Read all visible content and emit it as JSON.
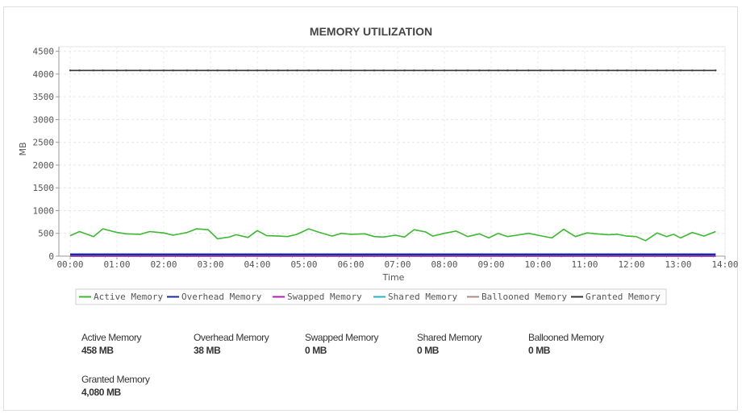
{
  "chart_data": {
    "type": "line",
    "title": "MEMORY UTILIZATION",
    "xlabel": "Time",
    "ylabel": "MB",
    "ylim": [
      0,
      4600
    ],
    "yticks": [
      0,
      500,
      1000,
      1500,
      2000,
      2500,
      3000,
      3500,
      4000,
      4500
    ],
    "xticks": [
      "00:00",
      "01:00",
      "02:00",
      "03:00",
      "04:00",
      "05:00",
      "06:00",
      "07:00",
      "08:00",
      "09:00",
      "10:00",
      "11:00",
      "12:00",
      "13:00",
      "14:00"
    ],
    "xlim_hours": [
      0,
      14
    ],
    "grid": true,
    "legend_position": "bottom",
    "x_hours": [
      0.0,
      0.2,
      0.5,
      0.7,
      1.0,
      1.2,
      1.5,
      1.7,
      2.0,
      2.2,
      2.5,
      2.7,
      2.95,
      3.15,
      3.4,
      3.55,
      3.8,
      4.0,
      4.2,
      4.45,
      4.65,
      4.85,
      5.1,
      5.3,
      5.6,
      5.8,
      6.0,
      6.3,
      6.5,
      6.7,
      6.95,
      7.15,
      7.35,
      7.6,
      7.75,
      8.0,
      8.25,
      8.5,
      8.75,
      8.95,
      9.15,
      9.35,
      9.55,
      9.8,
      10.05,
      10.3,
      10.55,
      10.8,
      11.05,
      11.25,
      11.5,
      11.7,
      11.9,
      12.1,
      12.3,
      12.55,
      12.75,
      12.9,
      13.05,
      13.3,
      13.55,
      13.8
    ],
    "series": [
      {
        "name": "Active Memory",
        "color": "#3cb832",
        "values": [
          450,
          540,
          430,
          600,
          520,
          490,
          480,
          540,
          510,
          460,
          520,
          600,
          580,
          380,
          420,
          470,
          410,
          560,
          450,
          440,
          430,
          480,
          600,
          530,
          440,
          500,
          480,
          490,
          430,
          420,
          460,
          420,
          580,
          530,
          440,
          500,
          550,
          430,
          490,
          400,
          500,
          430,
          460,
          500,
          450,
          400,
          590,
          430,
          510,
          490,
          470,
          480,
          440,
          430,
          340,
          510,
          430,
          480,
          400,
          520,
          440,
          540
        ]
      },
      {
        "name": "Overhead Memory",
        "color": "#1a2aa0",
        "values": [
          38,
          38,
          38,
          38,
          38,
          38,
          38,
          38,
          38,
          38,
          38,
          38,
          38,
          38,
          38,
          38,
          38,
          38,
          38,
          38,
          38,
          38,
          38,
          38,
          38,
          38,
          38,
          38,
          38,
          38,
          38,
          38,
          38,
          38,
          38,
          38,
          38,
          38,
          38,
          38,
          38,
          38,
          38,
          38,
          38,
          38,
          38,
          38,
          38,
          38,
          38,
          38,
          38,
          38,
          38,
          38,
          38,
          38,
          38,
          38,
          38,
          38
        ]
      },
      {
        "name": "Swapped Memory",
        "color": "#b020b0",
        "values": [
          0,
          0,
          0,
          0,
          0,
          0,
          0,
          0,
          0,
          0,
          0,
          0,
          0,
          0,
          0,
          0,
          0,
          0,
          0,
          0,
          0,
          0,
          0,
          0,
          0,
          0,
          0,
          0,
          0,
          0,
          0,
          0,
          0,
          0,
          0,
          0,
          0,
          0,
          0,
          0,
          0,
          0,
          0,
          0,
          0,
          0,
          0,
          0,
          0,
          0,
          0,
          0,
          0,
          0,
          0,
          0,
          0,
          0,
          0,
          0,
          0,
          0
        ]
      },
      {
        "name": "Shared Memory",
        "color": "#26b5c0",
        "values": [
          0,
          0,
          0,
          0,
          0,
          0,
          0,
          0,
          0,
          0,
          0,
          0,
          0,
          0,
          0,
          0,
          0,
          0,
          0,
          0,
          0,
          0,
          0,
          0,
          0,
          0,
          0,
          0,
          0,
          0,
          0,
          0,
          0,
          0,
          0,
          0,
          0,
          0,
          0,
          0,
          0,
          0,
          0,
          0,
          0,
          0,
          0,
          0,
          0,
          0,
          0,
          0,
          0,
          0,
          0,
          0,
          0,
          0,
          0,
          0,
          0,
          0
        ]
      },
      {
        "name": "Ballooned Memory",
        "color": "#b08a80",
        "values": [
          0,
          0,
          0,
          0,
          0,
          0,
          0,
          0,
          0,
          0,
          0,
          0,
          0,
          0,
          0,
          0,
          0,
          0,
          0,
          0,
          0,
          0,
          0,
          0,
          0,
          0,
          0,
          0,
          0,
          0,
          0,
          0,
          0,
          0,
          0,
          0,
          0,
          0,
          0,
          0,
          0,
          0,
          0,
          0,
          0,
          0,
          0,
          0,
          0,
          0,
          0,
          0,
          0,
          0,
          0,
          0,
          0,
          0,
          0,
          0,
          0,
          0
        ]
      },
      {
        "name": "Granted Memory",
        "color": "#333333",
        "values": [
          4080,
          4080,
          4080,
          4080,
          4080,
          4080,
          4080,
          4080,
          4080,
          4080,
          4080,
          4080,
          4080,
          4080,
          4080,
          4080,
          4080,
          4080,
          4080,
          4080,
          4080,
          4080,
          4080,
          4080,
          4080,
          4080,
          4080,
          4080,
          4080,
          4080,
          4080,
          4080,
          4080,
          4080,
          4080,
          4080,
          4080,
          4080,
          4080,
          4080,
          4080,
          4080,
          4080,
          4080,
          4080,
          4080,
          4080,
          4080,
          4080,
          4080,
          4080,
          4080,
          4080,
          4080,
          4080,
          4080,
          4080,
          4080,
          4080,
          4080,
          4080,
          4080
        ]
      }
    ]
  },
  "stats": [
    {
      "label": "Active Memory",
      "value": "458 MB"
    },
    {
      "label": "Overhead Memory",
      "value": "38 MB"
    },
    {
      "label": "Swapped Memory",
      "value": "0 MB"
    },
    {
      "label": "Shared Memory",
      "value": "0 MB"
    },
    {
      "label": "Ballooned Memory",
      "value": "0 MB"
    },
    {
      "label": "Granted Memory",
      "value": "4,080 MB"
    }
  ]
}
